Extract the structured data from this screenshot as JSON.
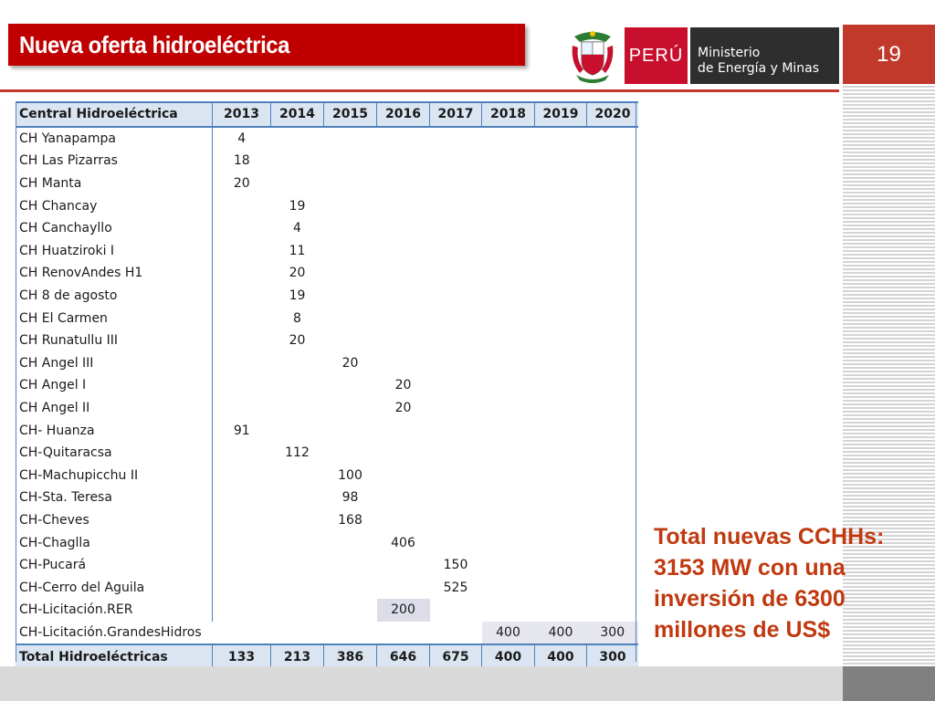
{
  "header": {
    "title": "Nueva oferta hidroeléctrica",
    "country": "PERÚ",
    "ministry_line1": "Ministerio",
    "ministry_line2": "de Energía y Minas",
    "page_number": "19"
  },
  "colors": {
    "accent": "#c00000",
    "table_header": "#dbe5f1",
    "table_border": "#4f81bd",
    "note": "#c0390f"
  },
  "table": {
    "columns": [
      "Central Hidroeléctrica",
      "2013",
      "2014",
      "2015",
      "2016",
      "2017",
      "2018",
      "2019",
      "2020"
    ],
    "rows": [
      [
        "CH Yanapampa",
        "4",
        "",
        "",
        "",
        "",
        "",
        "",
        ""
      ],
      [
        "CH Las Pizarras",
        "18",
        "",
        "",
        "",
        "",
        "",
        "",
        ""
      ],
      [
        "CH Manta",
        "20",
        "",
        "",
        "",
        "",
        "",
        "",
        ""
      ],
      [
        "CH Chancay",
        "",
        "19",
        "",
        "",
        "",
        "",
        "",
        ""
      ],
      [
        "CH Canchayllo",
        "",
        "4",
        "",
        "",
        "",
        "",
        "",
        ""
      ],
      [
        "CH Huatziroki I",
        "",
        "11",
        "",
        "",
        "",
        "",
        "",
        ""
      ],
      [
        "CH RenovAndes H1",
        "",
        "20",
        "",
        "",
        "",
        "",
        "",
        ""
      ],
      [
        "CH 8 de agosto",
        "",
        "19",
        "",
        "",
        "",
        "",
        "",
        ""
      ],
      [
        "CH El Carmen",
        "",
        "8",
        "",
        "",
        "",
        "",
        "",
        ""
      ],
      [
        "CH Runatullu III",
        "",
        "20",
        "",
        "",
        "",
        "",
        "",
        ""
      ],
      [
        "CH Angel III",
        "",
        "",
        "20",
        "",
        "",
        "",
        "",
        ""
      ],
      [
        "CH Angel I",
        "",
        "",
        "",
        "20",
        "",
        "",
        "",
        ""
      ],
      [
        "CH Angel II",
        "",
        "",
        "",
        "20",
        "",
        "",
        "",
        ""
      ],
      [
        "CH- Huanza",
        "91",
        "",
        "",
        "",
        "",
        "",
        "",
        ""
      ],
      [
        "CH-Quitaracsa",
        "",
        "112",
        "",
        "",
        "",
        "",
        "",
        ""
      ],
      [
        "CH-Machupicchu II",
        "",
        "",
        "100",
        "",
        "",
        "",
        "",
        ""
      ],
      [
        "CH-Sta. Teresa",
        "",
        "",
        "98",
        "",
        "",
        "",
        "",
        ""
      ],
      [
        "CH-Cheves",
        "",
        "",
        "168",
        "",
        "",
        "",
        "",
        ""
      ],
      [
        "CH-Chaglla",
        "",
        "",
        "",
        "406",
        "",
        "",
        "",
        ""
      ],
      [
        "CH-Pucará",
        "",
        "",
        "",
        "",
        "150",
        "",
        "",
        ""
      ],
      [
        "CH-Cerro del Aguila",
        "",
        "",
        "",
        "",
        "525",
        "",
        "",
        ""
      ],
      [
        "CH-Licitación.RER",
        "",
        "",
        "",
        "200",
        "",
        "",
        "",
        ""
      ],
      [
        "CH-Licitación.GrandesHidros",
        "",
        "",
        "",
        "",
        "",
        "400",
        "400",
        "300"
      ]
    ],
    "total": [
      "Total Hidroeléctricas",
      "133",
      "213",
      "386",
      "646",
      "675",
      "400",
      "400",
      "300"
    ]
  },
  "note": {
    "line1": "Total nuevas CCHHs:",
    "line2": "3153 MW con una",
    "line3": "inversión de 6300",
    "line4": "millones de US$"
  }
}
